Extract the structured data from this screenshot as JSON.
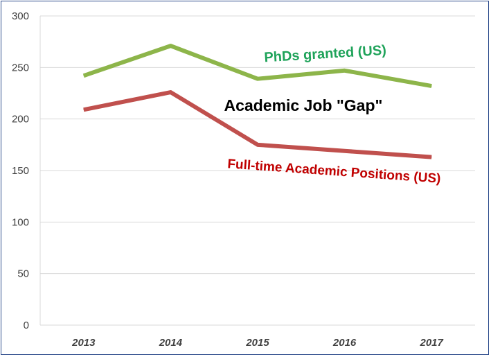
{
  "chart_data": {
    "type": "line",
    "title": "",
    "xlabel": "",
    "ylabel": "",
    "categories": [
      "2013",
      "2014",
      "2015",
      "2016",
      "2017"
    ],
    "ylim": [
      0,
      300
    ],
    "yticks": [
      0,
      50,
      100,
      150,
      200,
      250,
      300
    ],
    "grid": "horizontal",
    "series": [
      {
        "name": "PhDs granted (US)",
        "color": "#8db54a",
        "values": [
          242,
          271,
          239,
          247,
          232
        ]
      },
      {
        "name": "Full-time Academic Positions (US)",
        "color": "#c0504d",
        "values": [
          209,
          226,
          175,
          169,
          163
        ]
      }
    ],
    "annotations": [
      {
        "text": "PhDs granted (US)",
        "color": "#1fa35a"
      },
      {
        "text": "Academic Job \"Gap\"",
        "color": "#000000"
      },
      {
        "text": "Full-time Academic Positions (US)",
        "color": "#c00000"
      }
    ]
  }
}
